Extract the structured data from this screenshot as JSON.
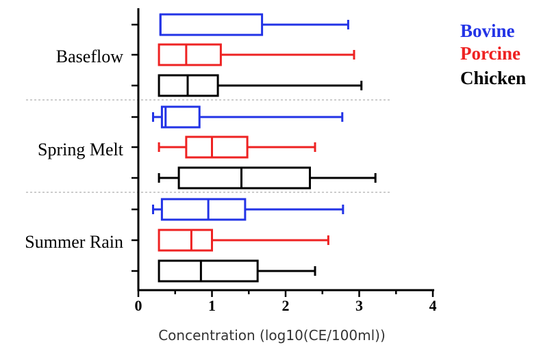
{
  "chart_data": {
    "type": "boxplot",
    "orientation": "horizontal",
    "xlabel": "Concentration (log10(CE/100ml))",
    "xlim": [
      0,
      4
    ],
    "xticks": [
      "0",
      "1",
      "2",
      "3",
      "4"
    ],
    "legend_position": "top-right",
    "colors": {
      "Bovine": "#2233e6",
      "Porcine": "#ee2222",
      "Chicken": "#000000"
    },
    "groups": [
      {
        "name": "Baseflow",
        "series": [
          {
            "name": "Bovine",
            "min": 0.3,
            "q1": 0.3,
            "median": 0.3,
            "q3": 1.68,
            "max": 2.85
          },
          {
            "name": "Porcine",
            "min": 0.28,
            "q1": 0.28,
            "median": 0.65,
            "q3": 1.12,
            "max": 2.93
          },
          {
            "name": "Chicken",
            "min": 0.28,
            "q1": 0.28,
            "median": 0.67,
            "q3": 1.08,
            "max": 3.03
          }
        ]
      },
      {
        "name": "Spring Melt",
        "series": [
          {
            "name": "Bovine",
            "min": 0.2,
            "q1": 0.32,
            "median": 0.37,
            "q3": 0.83,
            "max": 2.77
          },
          {
            "name": "Porcine",
            "min": 0.28,
            "q1": 0.65,
            "median": 1.0,
            "q3": 1.48,
            "max": 2.4
          },
          {
            "name": "Chicken",
            "min": 0.28,
            "q1": 0.55,
            "median": 1.4,
            "q3": 2.33,
            "max": 3.22
          }
        ]
      },
      {
        "name": "Summer Rain",
        "series": [
          {
            "name": "Bovine",
            "min": 0.2,
            "q1": 0.32,
            "median": 0.95,
            "q3": 1.45,
            "max": 2.78
          },
          {
            "name": "Porcine",
            "min": 0.28,
            "q1": 0.28,
            "median": 0.72,
            "q3": 1.0,
            "max": 2.58
          },
          {
            "name": "Chicken",
            "min": 0.28,
            "q1": 0.28,
            "median": 0.85,
            "q3": 1.62,
            "max": 2.4
          }
        ]
      }
    ]
  }
}
